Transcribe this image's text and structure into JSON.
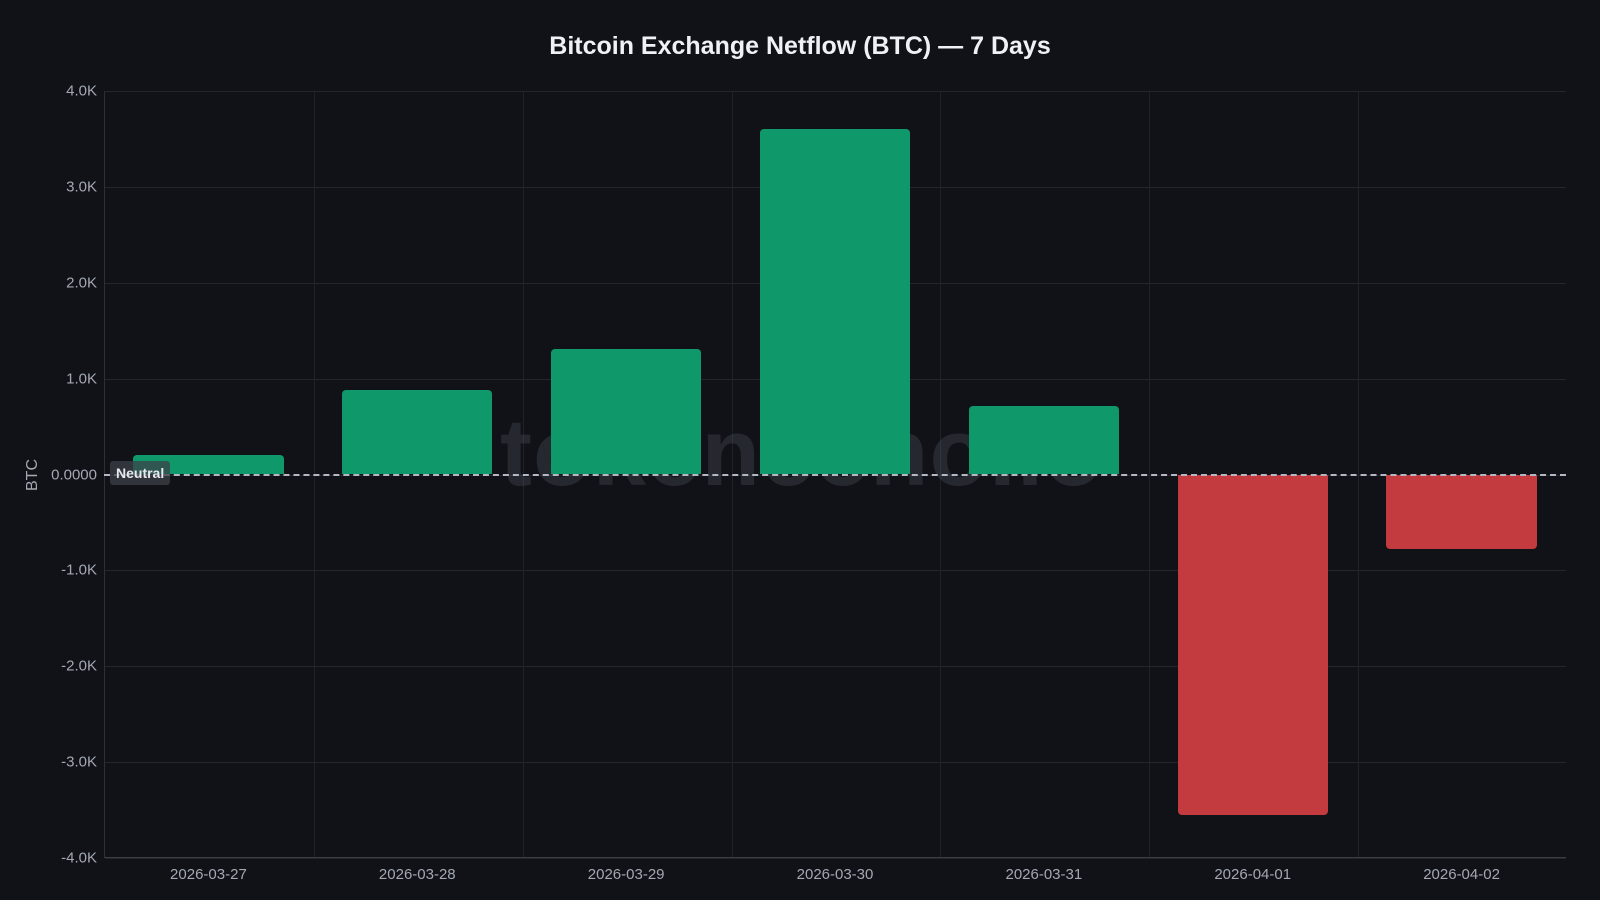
{
  "chart_data": {
    "type": "bar",
    "title": "Bitcoin Exchange Netflow (BTC) — 7 Days",
    "xlabel": "",
    "ylabel": "BTC",
    "categories": [
      "2026-03-27",
      "2026-03-28",
      "2026-03-29",
      "2026-03-30",
      "2026-03-31",
      "2026-04-01",
      "2026-04-02"
    ],
    "values": [
      205,
      880,
      1310,
      3600,
      715,
      -3550,
      -775
    ],
    "ylim": [
      -4000,
      4000
    ],
    "yticks": [
      "4.0K",
      "3.0K",
      "2.0K",
      "1.0K",
      "0.0000",
      "-1.0K",
      "-2.0K",
      "-3.0K",
      "-4.0K"
    ],
    "ytick_values": [
      4000,
      3000,
      2000,
      1000,
      0,
      -1000,
      -2000,
      -3000,
      -4000
    ],
    "grid": true,
    "legend": null,
    "colors": {
      "positive": "#0f996b",
      "negative": "#c33b3e"
    },
    "annotations": [
      {
        "type": "hline",
        "y": 0,
        "style": "dashed",
        "label": "Neutral"
      }
    ],
    "watermark": "tokenecho.io"
  }
}
